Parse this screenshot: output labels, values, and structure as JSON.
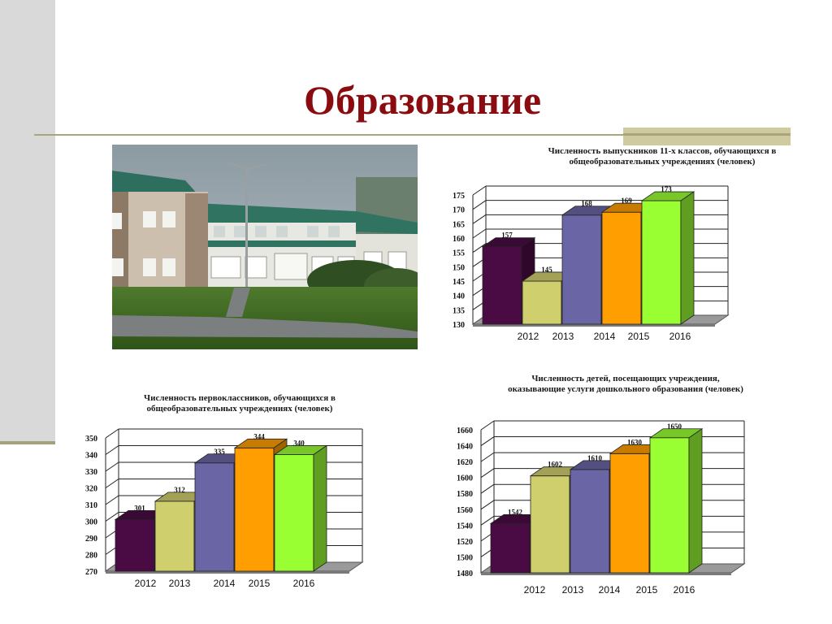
{
  "slide": {
    "title": "Образование"
  },
  "colors": {
    "title": "#8b0c10",
    "accent_rule": "#a9a57e",
    "series": [
      "#4a0b45",
      "#d0cf6e",
      "#6a66a6",
      "#ff9e00",
      "#99ff33"
    ]
  },
  "photo": {
    "subject": "school-building-photo"
  },
  "chart_data": [
    {
      "id": "graduates",
      "type": "bar",
      "title_lines": [
        "Численность выпускников 11-х классов, обучающихся в",
        "общеобразовательных учреждениях (человек)"
      ],
      "categories": [
        "2012",
        "2013",
        "2014",
        "2015",
        "2016"
      ],
      "values": [
        157,
        145,
        168,
        169,
        173
      ],
      "ylim": [
        130,
        175
      ],
      "yticks": [
        130,
        135,
        140,
        145,
        150,
        155,
        160,
        165,
        170,
        175
      ],
      "grid": true,
      "style": "3d-bar"
    },
    {
      "id": "first-graders",
      "type": "bar",
      "title_lines": [
        "Численность первоклассников, обучающихся в",
        "общеобразовательных учреждениях (человек)"
      ],
      "categories": [
        "2012",
        "2013",
        "2014",
        "2015",
        "2016"
      ],
      "values": [
        301,
        312,
        335,
        344,
        340
      ],
      "ylim": [
        270,
        350
      ],
      "yticks": [
        270,
        280,
        290,
        300,
        310,
        320,
        330,
        340,
        350
      ],
      "grid": true,
      "style": "3d-bar"
    },
    {
      "id": "preschool",
      "type": "bar",
      "title_lines": [
        "Численность детей, посещающих учреждения,",
        "оказывающие услуги дошкольного образования (человек)"
      ],
      "categories": [
        "2012",
        "2013",
        "2014",
        "2015",
        "2016"
      ],
      "values": [
        1542,
        1602,
        1610,
        1630,
        1650
      ],
      "ylim": [
        1480,
        1660
      ],
      "yticks": [
        1480,
        1500,
        1520,
        1540,
        1560,
        1580,
        1600,
        1620,
        1640,
        1660
      ],
      "grid": true,
      "style": "3d-bar"
    }
  ]
}
